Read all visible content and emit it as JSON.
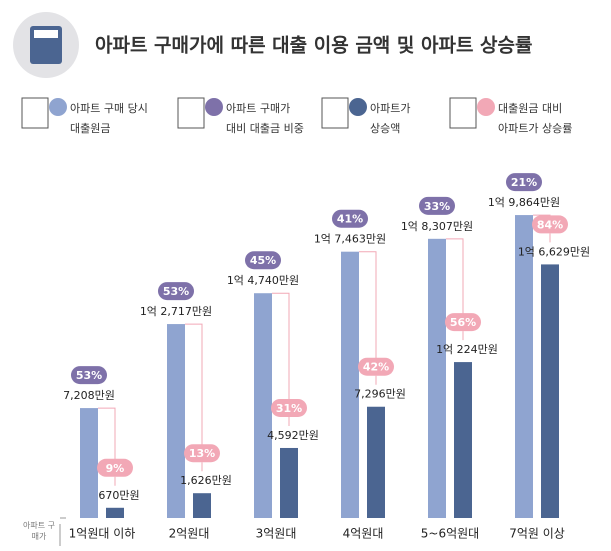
{
  "chart_data": {
    "type": "bar",
    "title": "아파트 구매가에 따른 대출 이용 금액 및 아파트 상승률",
    "x_label": "아파트 구매가",
    "categories": [
      "1억원대 이하",
      "2억원대",
      "3억원대",
      "4억원대",
      "5~6억원대",
      "7억원 이상"
    ],
    "series": [
      {
        "name": "아파트 구매 당시 대출원금",
        "color": "#8fa4d0",
        "values": [
          7208,
          12717,
          14740,
          17463,
          18307,
          19864
        ],
        "value_labels": [
          "7,208만원",
          "1억 2,717만원",
          "1억 4,740만원",
          "1억 7,463만원",
          "1억 8,307만원",
          "1억 9,864만원"
        ]
      },
      {
        "name": "아파트 구매가 대비 대출금 비중",
        "color": "#7e71a9",
        "values": [
          53,
          53,
          45,
          41,
          33,
          21
        ],
        "value_labels": [
          "53%",
          "53%",
          "45%",
          "41%",
          "33%",
          "21%"
        ]
      },
      {
        "name": "아파트가 상승액",
        "color": "#4b6591",
        "values": [
          670,
          1626,
          4592,
          7296,
          10224,
          16629
        ],
        "value_labels": [
          "670만원",
          "1,626만원",
          "4,592만원",
          "7,296만원",
          "1억 224만원",
          "1억 6,629만원"
        ]
      },
      {
        "name": "대출원금 대비 아파트가 상승률",
        "color": "#f2a8b6",
        "values": [
          9,
          13,
          31,
          42,
          56,
          84
        ],
        "value_labels": [
          "9%",
          "13%",
          "31%",
          "42%",
          "56%",
          "84%"
        ]
      }
    ]
  }
}
